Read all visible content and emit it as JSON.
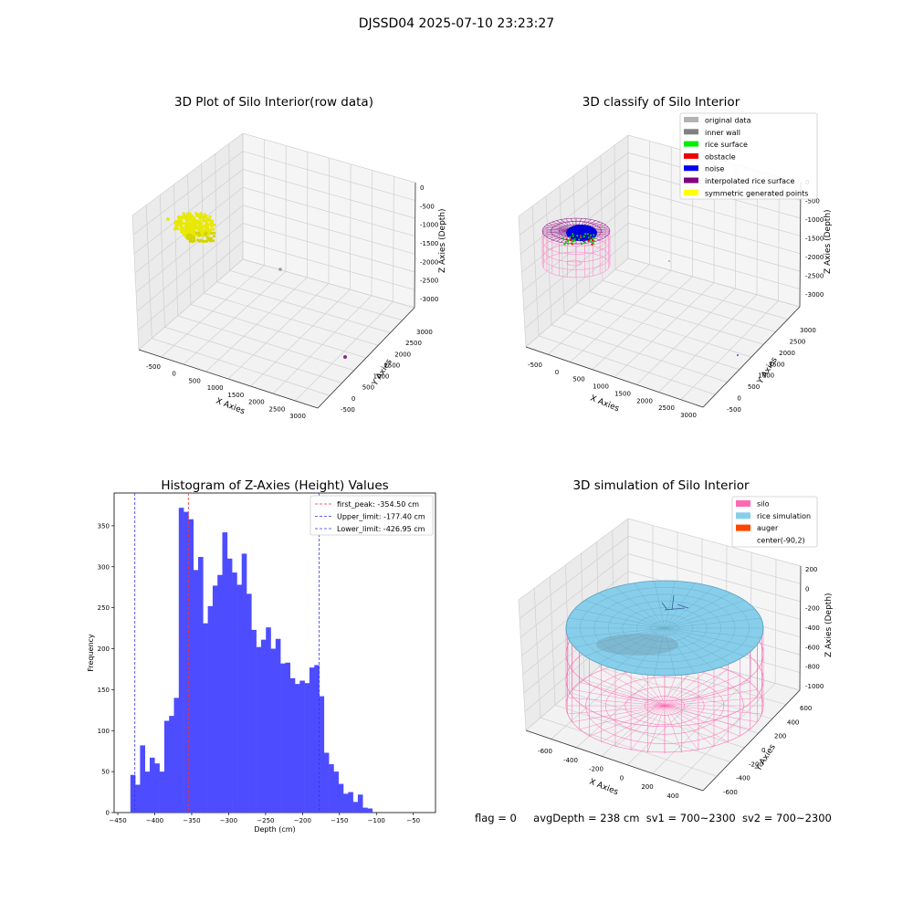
{
  "suptitle": "DJSSD04 2025-07-10 23:23:27",
  "footer": {
    "flag": "flag = 0",
    "avg": "avgDepth = 238 cm",
    "sv1": "sv1 = 700~2300",
    "sv2": "sv2 = 700~2300"
  },
  "chart_data": [
    {
      "type": "scatter",
      "title": "3D Plot of Silo Interior(row data)",
      "xlabel": "X Axies",
      "ylabel": "Y Axies",
      "zlabel": "Z Axies (Depth)",
      "x_ticks": [
        "-500",
        "0",
        "500",
        "1000",
        "1500",
        "2000",
        "2500",
        "3000"
      ],
      "y_ticks": [
        "-500",
        "0",
        "500",
        "1000",
        "1500",
        "2000",
        "2500",
        "3000"
      ],
      "z_ticks": [
        "0",
        "-500",
        "-1000",
        "-1500",
        "-2000",
        "-2500",
        "-3000"
      ],
      "colors": {
        "points": "#e8e800",
        "outlier": "#999999",
        "outlier2": "#8b2c8b"
      }
    },
    {
      "type": "scatter",
      "title": "3D classify of Silo Interior",
      "xlabel": "X Axies",
      "ylabel": "Y Axies",
      "zlabel": "Z Axies (Depth)",
      "x_ticks": [
        "-500",
        "0",
        "500",
        "1000",
        "1500",
        "2000",
        "2500",
        "3000"
      ],
      "y_ticks": [
        "-500",
        "0",
        "500",
        "1000",
        "1500",
        "2000",
        "2500",
        "3000"
      ],
      "z_ticks": [
        "0",
        "-500",
        "-1000",
        "-1500",
        "-2000",
        "-2500",
        "-3000"
      ],
      "legend": [
        {
          "label": "original data",
          "color": "#b3b3b3"
        },
        {
          "label": "inner wall",
          "color": "#808080"
        },
        {
          "label": "rice surface",
          "color": "#00ee00"
        },
        {
          "label": "obstacle",
          "color": "#ee0000"
        },
        {
          "label": "noise",
          "color": "#0000ee"
        },
        {
          "label": "interpolated rice surface",
          "color": "#800080"
        },
        {
          "label": "symmetric generated points",
          "color": "#ffff00"
        }
      ],
      "legend_loc": "upper right"
    },
    {
      "type": "bar",
      "title": "Histogram of Z-Axies (Height) Values",
      "xlabel": "Depth (cm)",
      "ylabel": "Frequency",
      "bin_start": -433,
      "bin_width": 6.55,
      "values": [
        46,
        34,
        82,
        50,
        67,
        60,
        50,
        112,
        118,
        140,
        372,
        367,
        358,
        296,
        312,
        231,
        252,
        277,
        290,
        342,
        310,
        293,
        278,
        316,
        267,
        223,
        202,
        211,
        226,
        200,
        212,
        182,
        183,
        164,
        157,
        161,
        158,
        177,
        180,
        142,
        73,
        59,
        50,
        35,
        23,
        25,
        13,
        22,
        6,
        5
      ],
      "xlim": [
        -455,
        -20
      ],
      "ylim": [
        0,
        390
      ],
      "x_ticks": [
        -450,
        -400,
        -350,
        -300,
        -250,
        -200,
        -150,
        -100,
        -50
      ],
      "y_ticks": [
        0,
        50,
        100,
        150,
        200,
        250,
        300,
        350
      ],
      "bar_color": "#4d4dff",
      "lines": [
        {
          "label": "first_peak: -354.50 cm",
          "x": -354.5,
          "color": "#ee3333"
        },
        {
          "label": "Upper_limit: -177.40 cm",
          "x": -177.4,
          "color": "#3333ee"
        },
        {
          "label": "Lower_limit: -426.95 cm",
          "x": -426.95,
          "color": "#3333ee"
        }
      ],
      "legend_loc": "upper right"
    },
    {
      "type": "scatter",
      "title": "3D simulation of Silo Interior",
      "xlabel": "X Axies",
      "ylabel": "Y Axies",
      "zlabel": "Z Axies (Depth)",
      "x_ticks": [
        "-600",
        "-400",
        "-200",
        "0",
        "200",
        "400"
      ],
      "y_ticks": [
        "-600",
        "-400",
        "-200",
        "0",
        "200",
        "400",
        "600"
      ],
      "z_ticks": [
        "200",
        "0",
        "-200",
        "-400",
        "-600",
        "-800",
        "-1000"
      ],
      "legend": [
        {
          "label": "silo",
          "color": "#ff69b4"
        },
        {
          "label": "rice simulation",
          "color": "#87ceeb"
        },
        {
          "label": "auger",
          "color": "#ff4500"
        },
        {
          "label": "center(-90,2)",
          "color": ""
        }
      ],
      "legend_loc": "upper right"
    }
  ]
}
